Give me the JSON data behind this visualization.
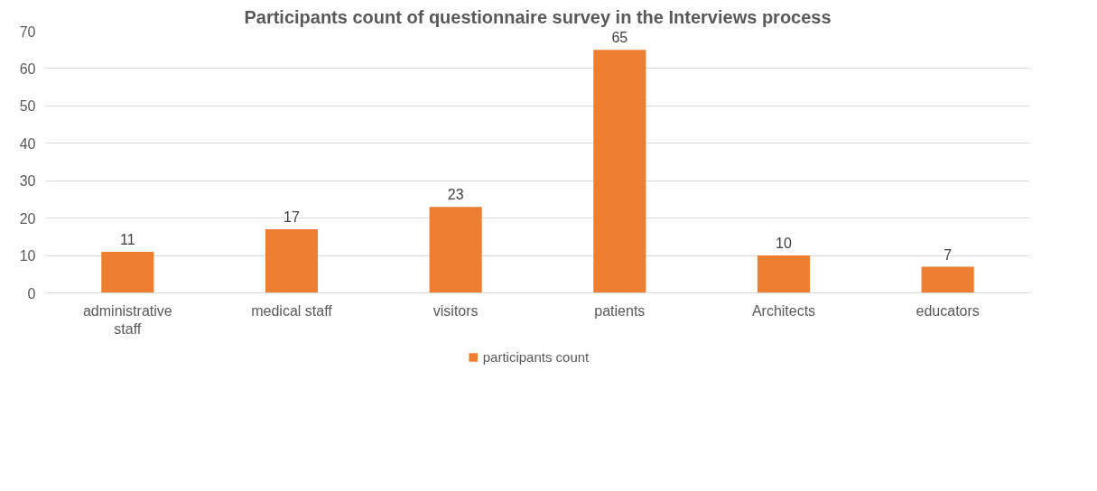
{
  "chart_data": {
    "type": "bar",
    "title": "Participants count of questionnaire survey in the Interviews process",
    "categories": [
      "administrative staff",
      "medical staff",
      "visitors",
      "patients",
      "Architects",
      "educators"
    ],
    "series": [
      {
        "name": "participants count",
        "color": "#ed7d31",
        "values": [
          11,
          17,
          23,
          65,
          10,
          7
        ]
      }
    ],
    "ylim": [
      0,
      70
    ],
    "yticks": [
      0,
      10,
      20,
      30,
      40,
      50,
      60,
      70
    ],
    "grid": "y",
    "legend": "bottom",
    "data_labels": true
  }
}
